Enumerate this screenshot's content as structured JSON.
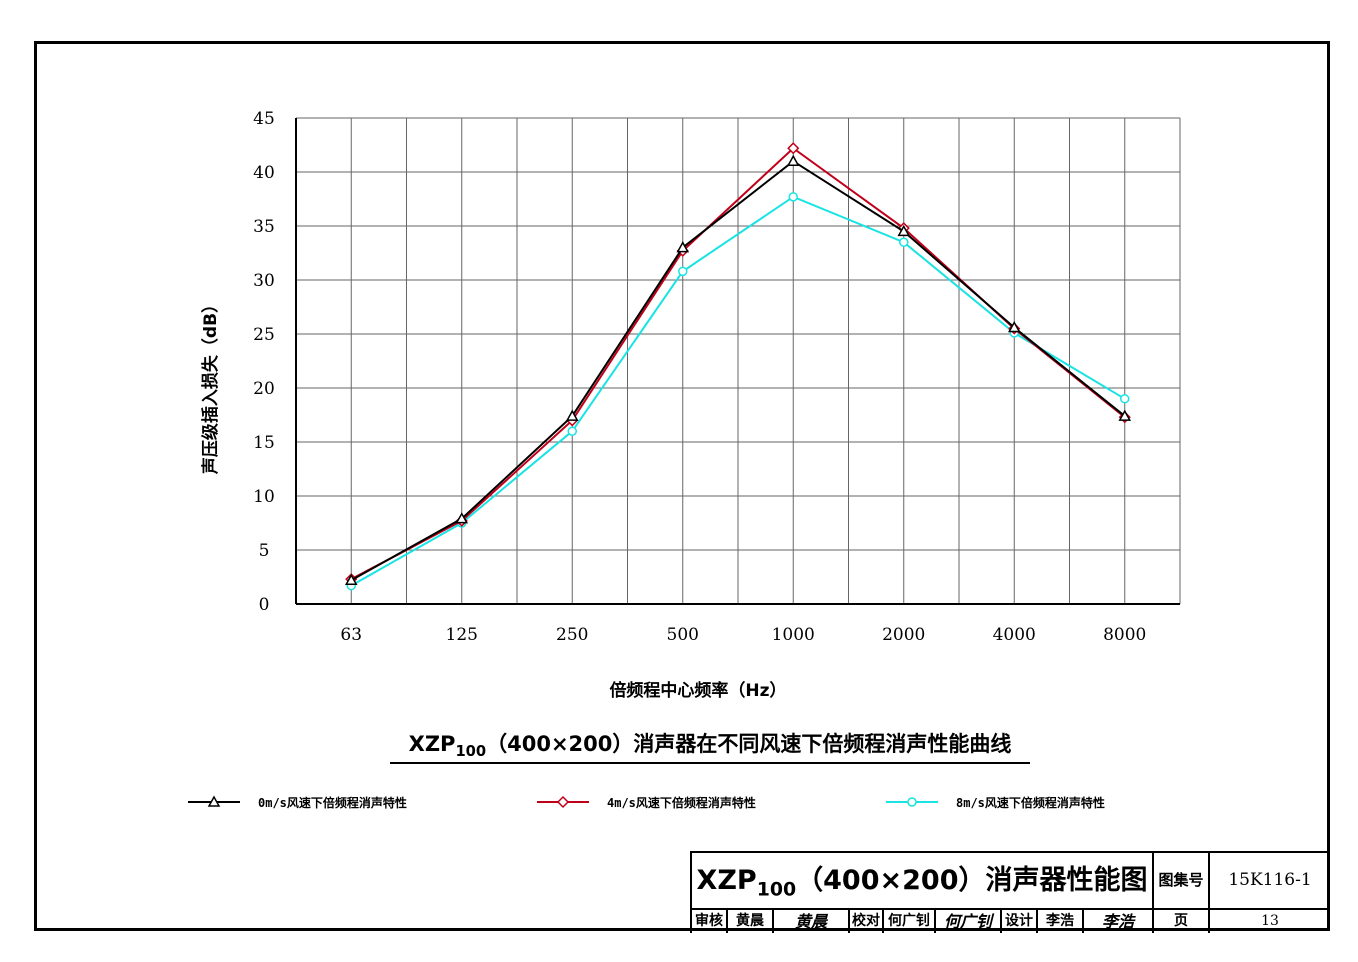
{
  "chart_data": {
    "type": "line",
    "title": "",
    "xlabel": "倍频程中心频率（Hz）",
    "ylabel": "声压级插入损失（dB）",
    "categories": [
      "63",
      "125",
      "250",
      "500",
      "1000",
      "2000",
      "4000",
      "8000"
    ],
    "ylim": [
      0,
      45
    ],
    "yticks": [
      "0",
      "5",
      "10",
      "15",
      "20",
      "25",
      "30",
      "35",
      "40",
      "45"
    ],
    "grid": true,
    "legend_position": "bottom",
    "series": [
      {
        "name": "0m/s风速下倍频程消声特性",
        "color": "#000000",
        "marker": "triangle",
        "values": [
          2.2,
          7.9,
          17.4,
          33.0,
          41.0,
          34.5,
          25.6,
          17.4
        ]
      },
      {
        "name": "4m/s风速下倍频程消声特性",
        "color": "#c0001a",
        "marker": "diamond",
        "values": [
          2.3,
          7.7,
          17.0,
          32.7,
          42.2,
          34.8,
          25.5,
          17.3
        ]
      },
      {
        "name": "8m/s风速下倍频程消声特性",
        "color": "#19e3e3",
        "marker": "circle",
        "values": [
          1.7,
          7.5,
          16.0,
          30.8,
          37.7,
          33.5,
          25.1,
          19.0
        ]
      }
    ]
  },
  "caption": {
    "prefix": "XZP",
    "subscript": "100",
    "suffix": "（400×200）消声器在不同风速下倍频程消声性能曲线"
  },
  "title_block": {
    "title_prefix": "XZP",
    "title_subscript": "100",
    "title_suffix": "（400×200）消声器性能图",
    "atlas_label": "图集号",
    "atlas_no": "15K116-1",
    "review_label": "审核",
    "review_name": "黄晨",
    "review_sign": "黄晨",
    "check_label": "校对",
    "check_name": "何广钊",
    "check_sign": "何广钊",
    "design_label": "设计",
    "design_name": "李浩",
    "design_sign": "李浩",
    "page_label": "页",
    "page_no": "13"
  }
}
